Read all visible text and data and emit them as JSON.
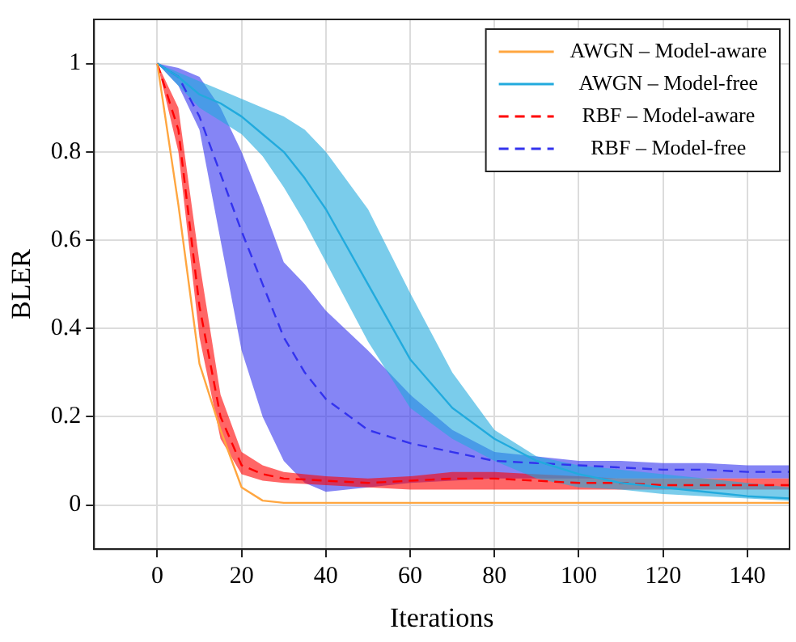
{
  "chart_data": {
    "type": "line",
    "xlabel": "Iterations",
    "ylabel": "BLER",
    "x": [
      0,
      5,
      10,
      15,
      20,
      25,
      30,
      35,
      40,
      50,
      60,
      70,
      80,
      90,
      100,
      110,
      120,
      130,
      140,
      150
    ],
    "xlim": [
      -15,
      150
    ],
    "xticks": [
      0,
      20,
      40,
      60,
      80,
      100,
      120,
      140
    ],
    "ylim": [
      -0.1,
      1.1
    ],
    "yticks": [
      0,
      0.2,
      0.4,
      0.6,
      0.8,
      1
    ],
    "grid": true,
    "legend": "top right",
    "marker": "none",
    "series": [
      {
        "name": "AWGN – Model-aware",
        "color": "#ffa640",
        "line_style": "solid",
        "values": [
          1,
          0.68,
          0.32,
          0.17,
          0.04,
          0.01,
          0.005,
          0.005,
          0.005,
          0.005,
          0.005,
          0.005,
          0.005,
          0.005,
          0.005,
          0.005,
          0.005,
          0.005,
          0.005,
          0.005
        ]
      },
      {
        "name": "AWGN – Model-free",
        "color": "#22aadd",
        "line_style": "solid",
        "values": [
          1,
          0.97,
          0.93,
          0.91,
          0.88,
          0.84,
          0.8,
          0.74,
          0.67,
          0.5,
          0.33,
          0.22,
          0.15,
          0.1,
          0.07,
          0.05,
          0.04,
          0.03,
          0.02,
          0.015
        ],
        "lower": [
          1,
          0.95,
          0.9,
          0.87,
          0.84,
          0.79,
          0.72,
          0.64,
          0.55,
          0.37,
          0.22,
          0.15,
          0.1,
          0.06,
          0.04,
          0.035,
          0.025,
          0.02,
          0.015,
          0.01
        ],
        "upper": [
          1,
          0.98,
          0.96,
          0.94,
          0.92,
          0.9,
          0.88,
          0.85,
          0.8,
          0.67,
          0.48,
          0.3,
          0.17,
          0.11,
          0.09,
          0.08,
          0.07,
          0.06,
          0.05,
          0.04
        ]
      },
      {
        "name": "RBF – Model-aware",
        "color": "#ff0000",
        "line_style": "dashed",
        "values": [
          1,
          0.85,
          0.45,
          0.2,
          0.09,
          0.07,
          0.06,
          0.058,
          0.055,
          0.05,
          0.055,
          0.06,
          0.06,
          0.055,
          0.05,
          0.05,
          0.045,
          0.045,
          0.045,
          0.045
        ],
        "lower": [
          1,
          0.8,
          0.38,
          0.15,
          0.07,
          0.055,
          0.05,
          0.048,
          0.045,
          0.04,
          0.035,
          0.035,
          0.035,
          0.035,
          0.035,
          0.035,
          0.035,
          0.035,
          0.035,
          0.035
        ],
        "upper": [
          1,
          0.9,
          0.55,
          0.25,
          0.12,
          0.09,
          0.075,
          0.07,
          0.065,
          0.06,
          0.065,
          0.075,
          0.075,
          0.07,
          0.065,
          0.06,
          0.06,
          0.06,
          0.06,
          0.06
        ]
      },
      {
        "name": "RBF – Model-free",
        "color": "#3333ee",
        "line_style": "dashed",
        "values": [
          1,
          0.97,
          0.88,
          0.75,
          0.62,
          0.5,
          0.38,
          0.3,
          0.24,
          0.17,
          0.14,
          0.12,
          0.1,
          0.095,
          0.09,
          0.085,
          0.08,
          0.08,
          0.075,
          0.075
        ],
        "lower": [
          1,
          0.95,
          0.85,
          0.6,
          0.35,
          0.2,
          0.1,
          0.05,
          0.03,
          0.04,
          0.05,
          0.055,
          0.06,
          0.06,
          0.06,
          0.06,
          0.06,
          0.06,
          0.06,
          0.06
        ],
        "upper": [
          1,
          0.99,
          0.97,
          0.9,
          0.8,
          0.68,
          0.55,
          0.5,
          0.44,
          0.35,
          0.25,
          0.17,
          0.12,
          0.11,
          0.1,
          0.1,
          0.095,
          0.095,
          0.09,
          0.09
        ]
      }
    ]
  }
}
